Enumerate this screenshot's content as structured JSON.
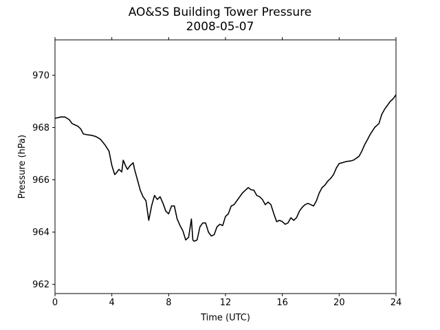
{
  "chart_data": {
    "type": "line",
    "title": "AO&SS Building Tower Pressure",
    "subtitle": "2008-05-07",
    "xlabel": "Time (UTC)",
    "ylabel": "Pressure (hPa)",
    "xlim": [
      0,
      24
    ],
    "ylim": [
      961.65,
      971.35
    ],
    "xticks": [
      0,
      4,
      8,
      12,
      16,
      20,
      24
    ],
    "yticks": [
      962,
      964,
      966,
      968,
      970
    ],
    "grid": false,
    "line_color": "#000000",
    "series": [
      {
        "x": [
          0.0,
          0.4,
          0.7,
          1.0,
          1.2,
          1.4,
          1.6,
          1.8,
          2.0,
          2.3,
          2.6,
          2.9,
          3.2,
          3.5,
          3.8,
          4.0,
          4.2,
          4.3,
          4.5,
          4.7,
          4.8,
          5.0,
          5.1,
          5.3,
          5.5,
          5.6,
          5.8,
          6.0,
          6.2,
          6.4,
          6.6,
          6.8,
          7.0,
          7.2,
          7.4,
          7.6,
          7.8,
          8.0,
          8.2,
          8.4,
          8.6,
          8.8,
          9.0,
          9.2,
          9.4,
          9.6,
          9.7,
          9.8,
          10.0,
          10.2,
          10.4,
          10.6,
          10.8,
          11.0,
          11.2,
          11.4,
          11.6,
          11.8,
          12.0,
          12.2,
          12.4,
          12.6,
          12.8,
          13.0,
          13.2,
          13.4,
          13.6,
          13.8,
          14.0,
          14.2,
          14.4,
          14.6,
          14.8,
          15.0,
          15.2,
          15.4,
          15.6,
          15.8,
          16.0,
          16.2,
          16.4,
          16.6,
          16.8,
          17.0,
          17.2,
          17.4,
          17.6,
          17.8,
          18.0,
          18.2,
          18.4,
          18.6,
          18.8,
          19.0,
          19.2,
          19.4,
          19.6,
          19.8,
          20.0,
          20.2,
          20.5,
          20.8,
          21.0,
          21.2,
          21.4,
          21.6,
          21.8,
          22.0,
          22.2,
          22.5,
          22.8,
          23.0,
          23.2,
          23.4,
          23.6,
          23.8,
          24.0
        ],
        "y": [
          968.35,
          968.4,
          968.4,
          968.3,
          968.15,
          968.1,
          968.05,
          967.95,
          967.75,
          967.72,
          967.7,
          967.65,
          967.55,
          967.35,
          967.1,
          966.55,
          966.2,
          966.25,
          966.4,
          966.3,
          966.75,
          966.5,
          966.4,
          966.55,
          966.65,
          966.4,
          966.0,
          965.6,
          965.35,
          965.2,
          964.45,
          965.0,
          965.4,
          965.25,
          965.35,
          965.1,
          964.8,
          964.7,
          965.0,
          965.0,
          964.5,
          964.25,
          964.05,
          963.7,
          963.8,
          964.5,
          963.7,
          963.65,
          963.7,
          964.2,
          964.35,
          964.35,
          964.0,
          963.85,
          963.9,
          964.2,
          964.3,
          964.25,
          964.6,
          964.7,
          965.0,
          965.05,
          965.2,
          965.35,
          965.5,
          965.6,
          965.7,
          965.62,
          965.6,
          965.4,
          965.35,
          965.25,
          965.05,
          965.15,
          965.05,
          964.7,
          964.4,
          964.45,
          964.4,
          964.3,
          964.35,
          964.55,
          964.45,
          964.55,
          964.8,
          964.95,
          965.05,
          965.1,
          965.05,
          965.0,
          965.2,
          965.5,
          965.7,
          965.8,
          965.95,
          966.05,
          966.2,
          966.45,
          966.62,
          966.65,
          966.7,
          966.72,
          966.75,
          966.82,
          966.9,
          967.1,
          967.35,
          967.55,
          967.75,
          968.0,
          968.15,
          968.5,
          968.7,
          968.85,
          969.0,
          969.1,
          969.25
        ]
      }
    ]
  }
}
